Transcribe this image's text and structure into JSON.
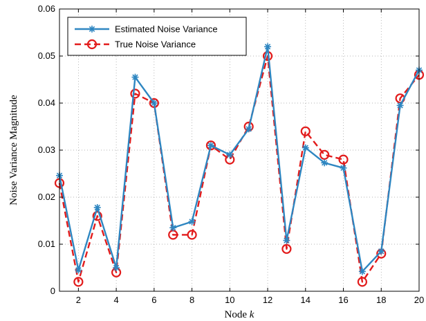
{
  "chart_data": {
    "type": "line",
    "xlabel_prefix": "Node ",
    "xlabel_var": "k",
    "ylabel": "Noise Variance Magnitude",
    "xlim": [
      1,
      20
    ],
    "ylim": [
      0,
      0.06
    ],
    "x_ticks": [
      2,
      4,
      6,
      8,
      10,
      12,
      14,
      16,
      18,
      20
    ],
    "y_ticks": [
      0,
      0.01,
      0.02,
      0.03,
      0.04,
      0.05,
      0.06
    ],
    "y_tick_labels": [
      "0",
      "0.01",
      "0.02",
      "0.03",
      "0.04",
      "0.05",
      "0.06"
    ],
    "grid": true,
    "legend_position": "top-left",
    "x": [
      1,
      2,
      3,
      4,
      5,
      6,
      7,
      8,
      9,
      10,
      11,
      12,
      13,
      14,
      15,
      16,
      17,
      18,
      19,
      20
    ],
    "series": [
      {
        "name": "Estimated Noise Variance",
        "color": "#2E86C1",
        "style": "solid",
        "marker": "asterisk",
        "values": [
          0.0246,
          0.0045,
          0.0178,
          0.005,
          0.0455,
          0.04,
          0.0135,
          0.0148,
          0.031,
          0.029,
          0.0345,
          0.052,
          0.0108,
          0.0305,
          0.0273,
          0.0262,
          0.0042,
          0.0085,
          0.0395,
          0.047
        ]
      },
      {
        "name": "True Noise Variance",
        "color": "#E21B1B",
        "style": "dashed",
        "marker": "circle",
        "values": [
          0.023,
          0.002,
          0.016,
          0.004,
          0.042,
          0.04,
          0.012,
          0.012,
          0.031,
          0.028,
          0.035,
          0.05,
          0.009,
          0.034,
          0.029,
          0.028,
          0.002,
          0.008,
          0.041,
          0.046
        ]
      }
    ]
  }
}
